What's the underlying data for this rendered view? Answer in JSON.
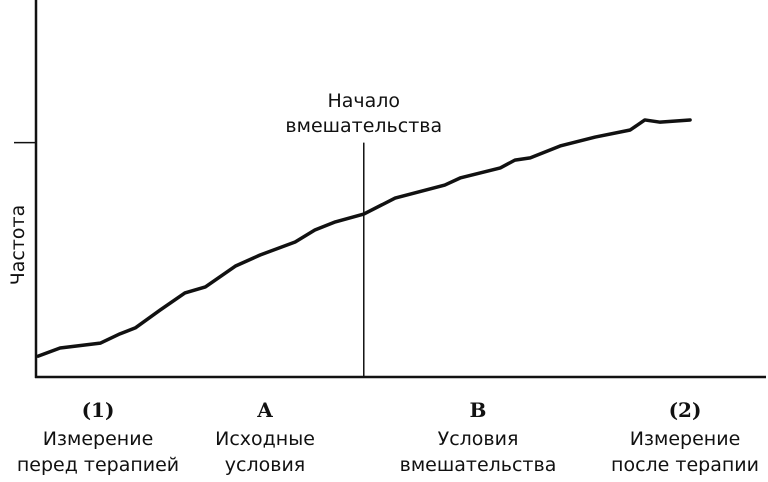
{
  "chart_data": {
    "type": "line",
    "ylabel": "Частота",
    "xlim": [
      0,
      100
    ],
    "ylim": [
      0,
      100
    ],
    "yticks": [
      63
    ],
    "x": [
      0.3,
      3.3,
      8.8,
      11.5,
      13.6,
      17.0,
      20.4,
      23.2,
      27.3,
      30.7,
      35.5,
      38.2,
      41.0,
      44.9,
      49.2,
      56.0,
      58.1,
      63.6,
      65.6,
      67.7,
      71.8,
      76.6,
      81.4,
      83.4,
      85.5,
      89.6
    ],
    "series": [
      {
        "color": "#111111",
        "values": [
          5.6,
          7.8,
          9.1,
          11.6,
          13.2,
          18.0,
          22.6,
          24.2,
          29.8,
          32.8,
          36.3,
          39.5,
          41.7,
          43.8,
          48.1,
          51.6,
          53.5,
          56.2,
          58.3,
          58.9,
          62.1,
          64.5,
          66.4,
          69.1,
          68.5,
          69.1
        ]
      }
    ],
    "annotations": [
      {
        "x": 44.9,
        "text": [
          "Начало",
          "вмешательства"
        ]
      }
    ],
    "phases": [
      {
        "marker": "(1)",
        "lines": [
          "Измерение",
          "перед терапией"
        ]
      },
      {
        "marker": "A",
        "lines": [
          "Исходные",
          "условия"
        ]
      },
      {
        "marker": "B",
        "lines": [
          "Условия",
          "вмешательства"
        ]
      },
      {
        "marker": "(2)",
        "lines": [
          "Измерение",
          "после терапии"
        ]
      }
    ]
  }
}
